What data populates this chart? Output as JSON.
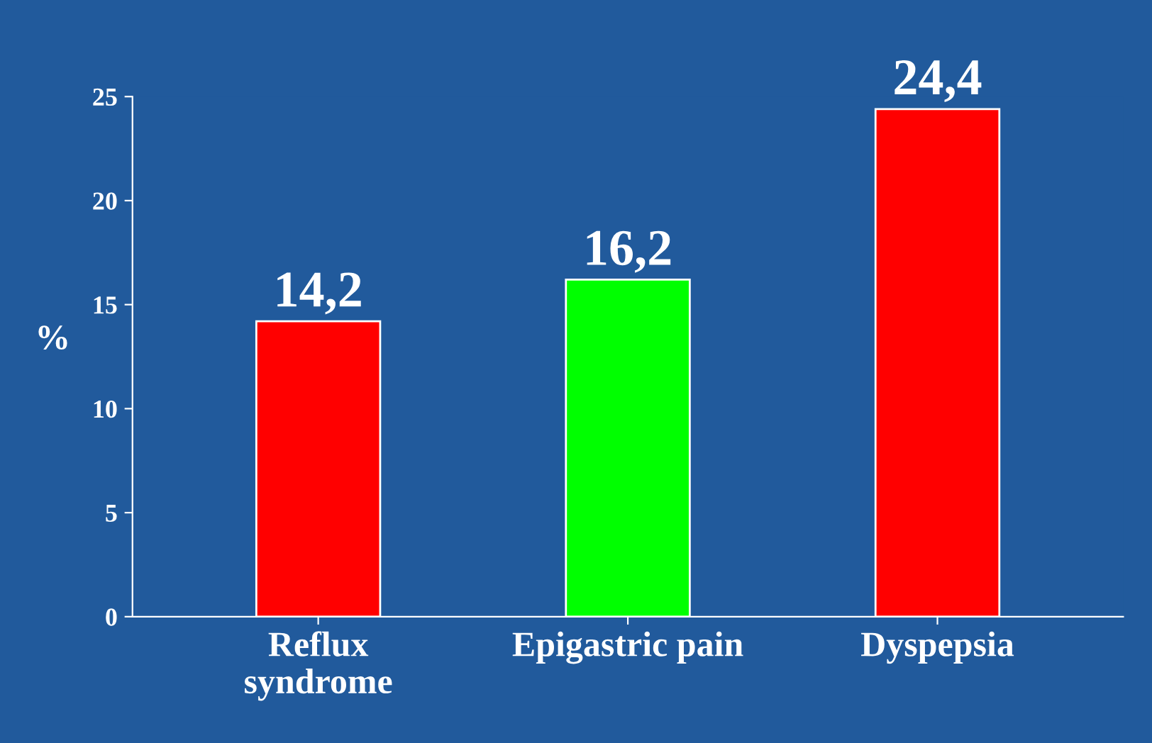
{
  "chart_data": {
    "type": "bar",
    "categories": [
      "Reflux\nsyndrome",
      "Epigastric pain",
      "Dyspepsia"
    ],
    "values": [
      14.2,
      16.2,
      24.4
    ],
    "colors": [
      "#ff0000",
      "#00ff00",
      "#ff0000"
    ],
    "value_labels": [
      "14,2",
      "16,2",
      "24,4"
    ],
    "ylabel": "%",
    "ylim": [
      0,
      25
    ],
    "yticks": [
      0,
      5,
      10,
      15,
      20,
      25
    ],
    "grid": false,
    "legend": false
  }
}
